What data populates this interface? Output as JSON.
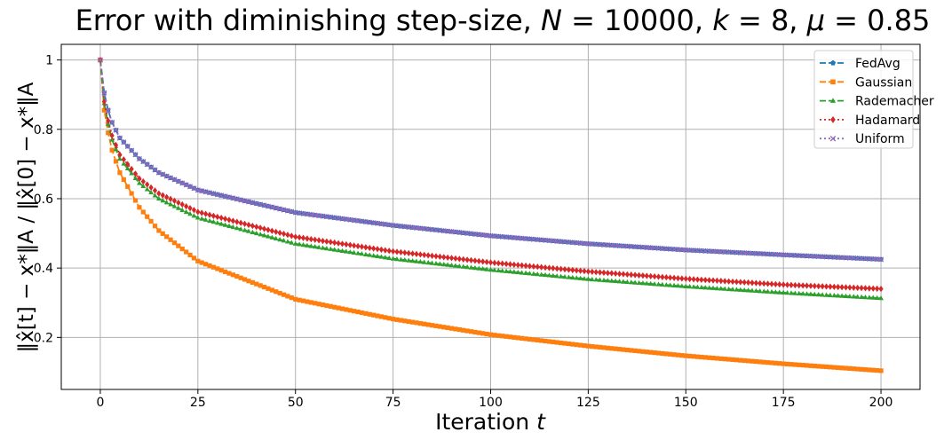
{
  "chart_data": {
    "type": "line",
    "title": "Error with diminishing step-size, N = 10000, k = 8, μ = 0.85",
    "title_parts": {
      "prefix": "Error with diminishing step-size, ",
      "n_sym": "N",
      "n_eq": " = 10000, ",
      "k_sym": "k",
      "k_eq": " = 8, ",
      "mu_sym": "μ",
      "mu_eq": " = 0.85"
    },
    "xlabel": "Iteration t",
    "xlabel_parts": {
      "text": "Iteration ",
      "var": "t"
    },
    "ylabel": "‖x̂[t] − x*‖A / ‖x̂[0] − x*‖A",
    "xlim": [
      -10,
      210
    ],
    "ylim": [
      0.05,
      1.045
    ],
    "xticks": [
      0,
      25,
      50,
      75,
      100,
      125,
      150,
      175,
      200
    ],
    "yticks": [
      0.2,
      0.4,
      0.6,
      0.8,
      1
    ],
    "ytick_labels": [
      "0.2",
      "0.4",
      "0.6",
      "0.8",
      "1"
    ],
    "grid": true,
    "legend_position": "top-right",
    "x_range": [
      0,
      200
    ],
    "series": [
      {
        "name": "FedAvg",
        "color": "#1f77b4",
        "linestyle": "dashed",
        "marker": "pentagon",
        "anchors": [
          [
            0,
            1
          ],
          [
            1,
            0.905
          ],
          [
            2,
            0.855
          ],
          [
            3,
            0.82
          ],
          [
            5,
            0.775
          ],
          [
            10,
            0.715
          ],
          [
            15,
            0.675
          ],
          [
            25,
            0.625
          ],
          [
            50,
            0.56
          ],
          [
            75,
            0.523
          ],
          [
            100,
            0.493
          ],
          [
            125,
            0.47
          ],
          [
            150,
            0.452
          ],
          [
            175,
            0.438
          ],
          [
            200,
            0.425
          ]
        ]
      },
      {
        "name": "Gaussian",
        "color": "#ff7f0e",
        "linestyle": "dashed",
        "marker": "square",
        "anchors": [
          [
            0,
            1
          ],
          [
            1,
            0.855
          ],
          [
            2,
            0.79
          ],
          [
            3,
            0.74
          ],
          [
            5,
            0.675
          ],
          [
            10,
            0.575
          ],
          [
            15,
            0.508
          ],
          [
            25,
            0.42
          ],
          [
            50,
            0.31
          ],
          [
            75,
            0.253
          ],
          [
            100,
            0.208
          ],
          [
            125,
            0.175
          ],
          [
            150,
            0.147
          ],
          [
            175,
            0.124
          ],
          [
            200,
            0.104
          ]
        ]
      },
      {
        "name": "Rademacher",
        "color": "#2ca02c",
        "linestyle": "dashed",
        "marker": "triangle",
        "anchors": [
          [
            0,
            1
          ],
          [
            1,
            0.875
          ],
          [
            2,
            0.815
          ],
          [
            3,
            0.77
          ],
          [
            5,
            0.715
          ],
          [
            10,
            0.645
          ],
          [
            15,
            0.6
          ],
          [
            25,
            0.545
          ],
          [
            50,
            0.47
          ],
          [
            75,
            0.427
          ],
          [
            100,
            0.395
          ],
          [
            125,
            0.368
          ],
          [
            150,
            0.347
          ],
          [
            175,
            0.329
          ],
          [
            200,
            0.313
          ]
        ]
      },
      {
        "name": "Hadamard",
        "color": "#d62728",
        "linestyle": "dotted",
        "marker": "diamond",
        "anchors": [
          [
            0,
            1
          ],
          [
            1,
            0.88
          ],
          [
            2,
            0.825
          ],
          [
            3,
            0.782
          ],
          [
            5,
            0.727
          ],
          [
            10,
            0.658
          ],
          [
            15,
            0.615
          ],
          [
            25,
            0.562
          ],
          [
            50,
            0.49
          ],
          [
            75,
            0.448
          ],
          [
            100,
            0.416
          ],
          [
            125,
            0.39
          ],
          [
            150,
            0.369
          ],
          [
            175,
            0.352
          ],
          [
            200,
            0.34
          ]
        ]
      },
      {
        "name": "Uniform",
        "color": "#9467bd",
        "linestyle": "dotted",
        "marker": "x",
        "anchors": [
          [
            0,
            1
          ],
          [
            1,
            0.905
          ],
          [
            2,
            0.855
          ],
          [
            3,
            0.82
          ],
          [
            5,
            0.775
          ],
          [
            10,
            0.715
          ],
          [
            15,
            0.675
          ],
          [
            25,
            0.625
          ],
          [
            50,
            0.56
          ],
          [
            75,
            0.523
          ],
          [
            100,
            0.493
          ],
          [
            125,
            0.47
          ],
          [
            150,
            0.452
          ],
          [
            175,
            0.438
          ],
          [
            200,
            0.425
          ]
        ]
      }
    ]
  }
}
